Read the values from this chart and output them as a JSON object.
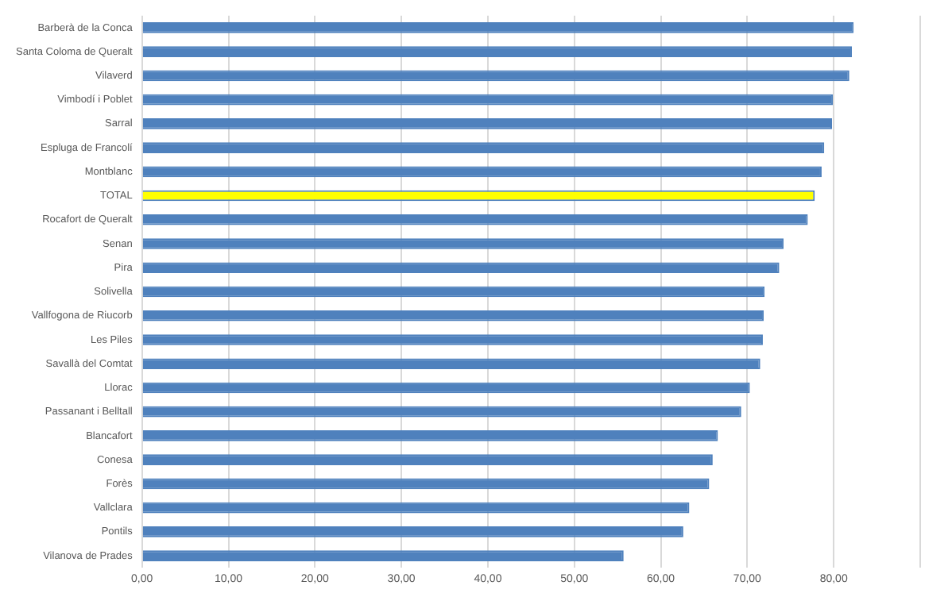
{
  "chart_data": {
    "type": "bar",
    "orientation": "horizontal",
    "categories": [
      "Barberà de la Conca",
      "Santa Coloma de Queralt",
      "Vilaverd",
      "Vimbodí i Poblet",
      "Sarral",
      "Espluga de Francolí",
      "Montblanc",
      "TOTAL",
      "Rocafort de Queralt",
      "Senan",
      "Pira",
      "Solivella",
      "Vallfogona de Riucorb",
      "Les Piles",
      "Savallà del Comtat",
      "Llorac",
      "Passanant i Belltall",
      "Blancafort",
      "Conesa",
      "Forès",
      "Vallclara",
      "Pontils",
      "Vilanova de Prades"
    ],
    "values": [
      82.3,
      82.1,
      81.8,
      79.9,
      79.8,
      78.9,
      78.6,
      77.8,
      77.0,
      74.2,
      73.7,
      72.0,
      71.9,
      71.8,
      71.5,
      70.3,
      69.3,
      66.6,
      66.0,
      65.6,
      63.3,
      62.6,
      55.7
    ],
    "colors": [
      "#4f81bd",
      "#4f81bd",
      "#4f81bd",
      "#4f81bd",
      "#4f81bd",
      "#4f81bd",
      "#4f81bd",
      "#ffff00",
      "#4f81bd",
      "#4f81bd",
      "#4f81bd",
      "#4f81bd",
      "#4f81bd",
      "#4f81bd",
      "#4f81bd",
      "#4f81bd",
      "#4f81bd",
      "#4f81bd",
      "#4f81bd",
      "#4f81bd",
      "#4f81bd",
      "#4f81bd",
      "#4f81bd"
    ],
    "xlim": [
      0,
      90
    ],
    "xticks": [
      {
        "value": 0,
        "label": "0,00"
      },
      {
        "value": 10,
        "label": "10,00"
      },
      {
        "value": 20,
        "label": "20,00"
      },
      {
        "value": 30,
        "label": "30,00"
      },
      {
        "value": 40,
        "label": "40,00"
      },
      {
        "value": 50,
        "label": "50,00"
      },
      {
        "value": 60,
        "label": "60,00"
      },
      {
        "value": 70,
        "label": "70,00"
      },
      {
        "value": 80,
        "label": "80,00"
      },
      {
        "value": 90,
        "label": null
      }
    ],
    "grid": "x",
    "legend": false
  }
}
